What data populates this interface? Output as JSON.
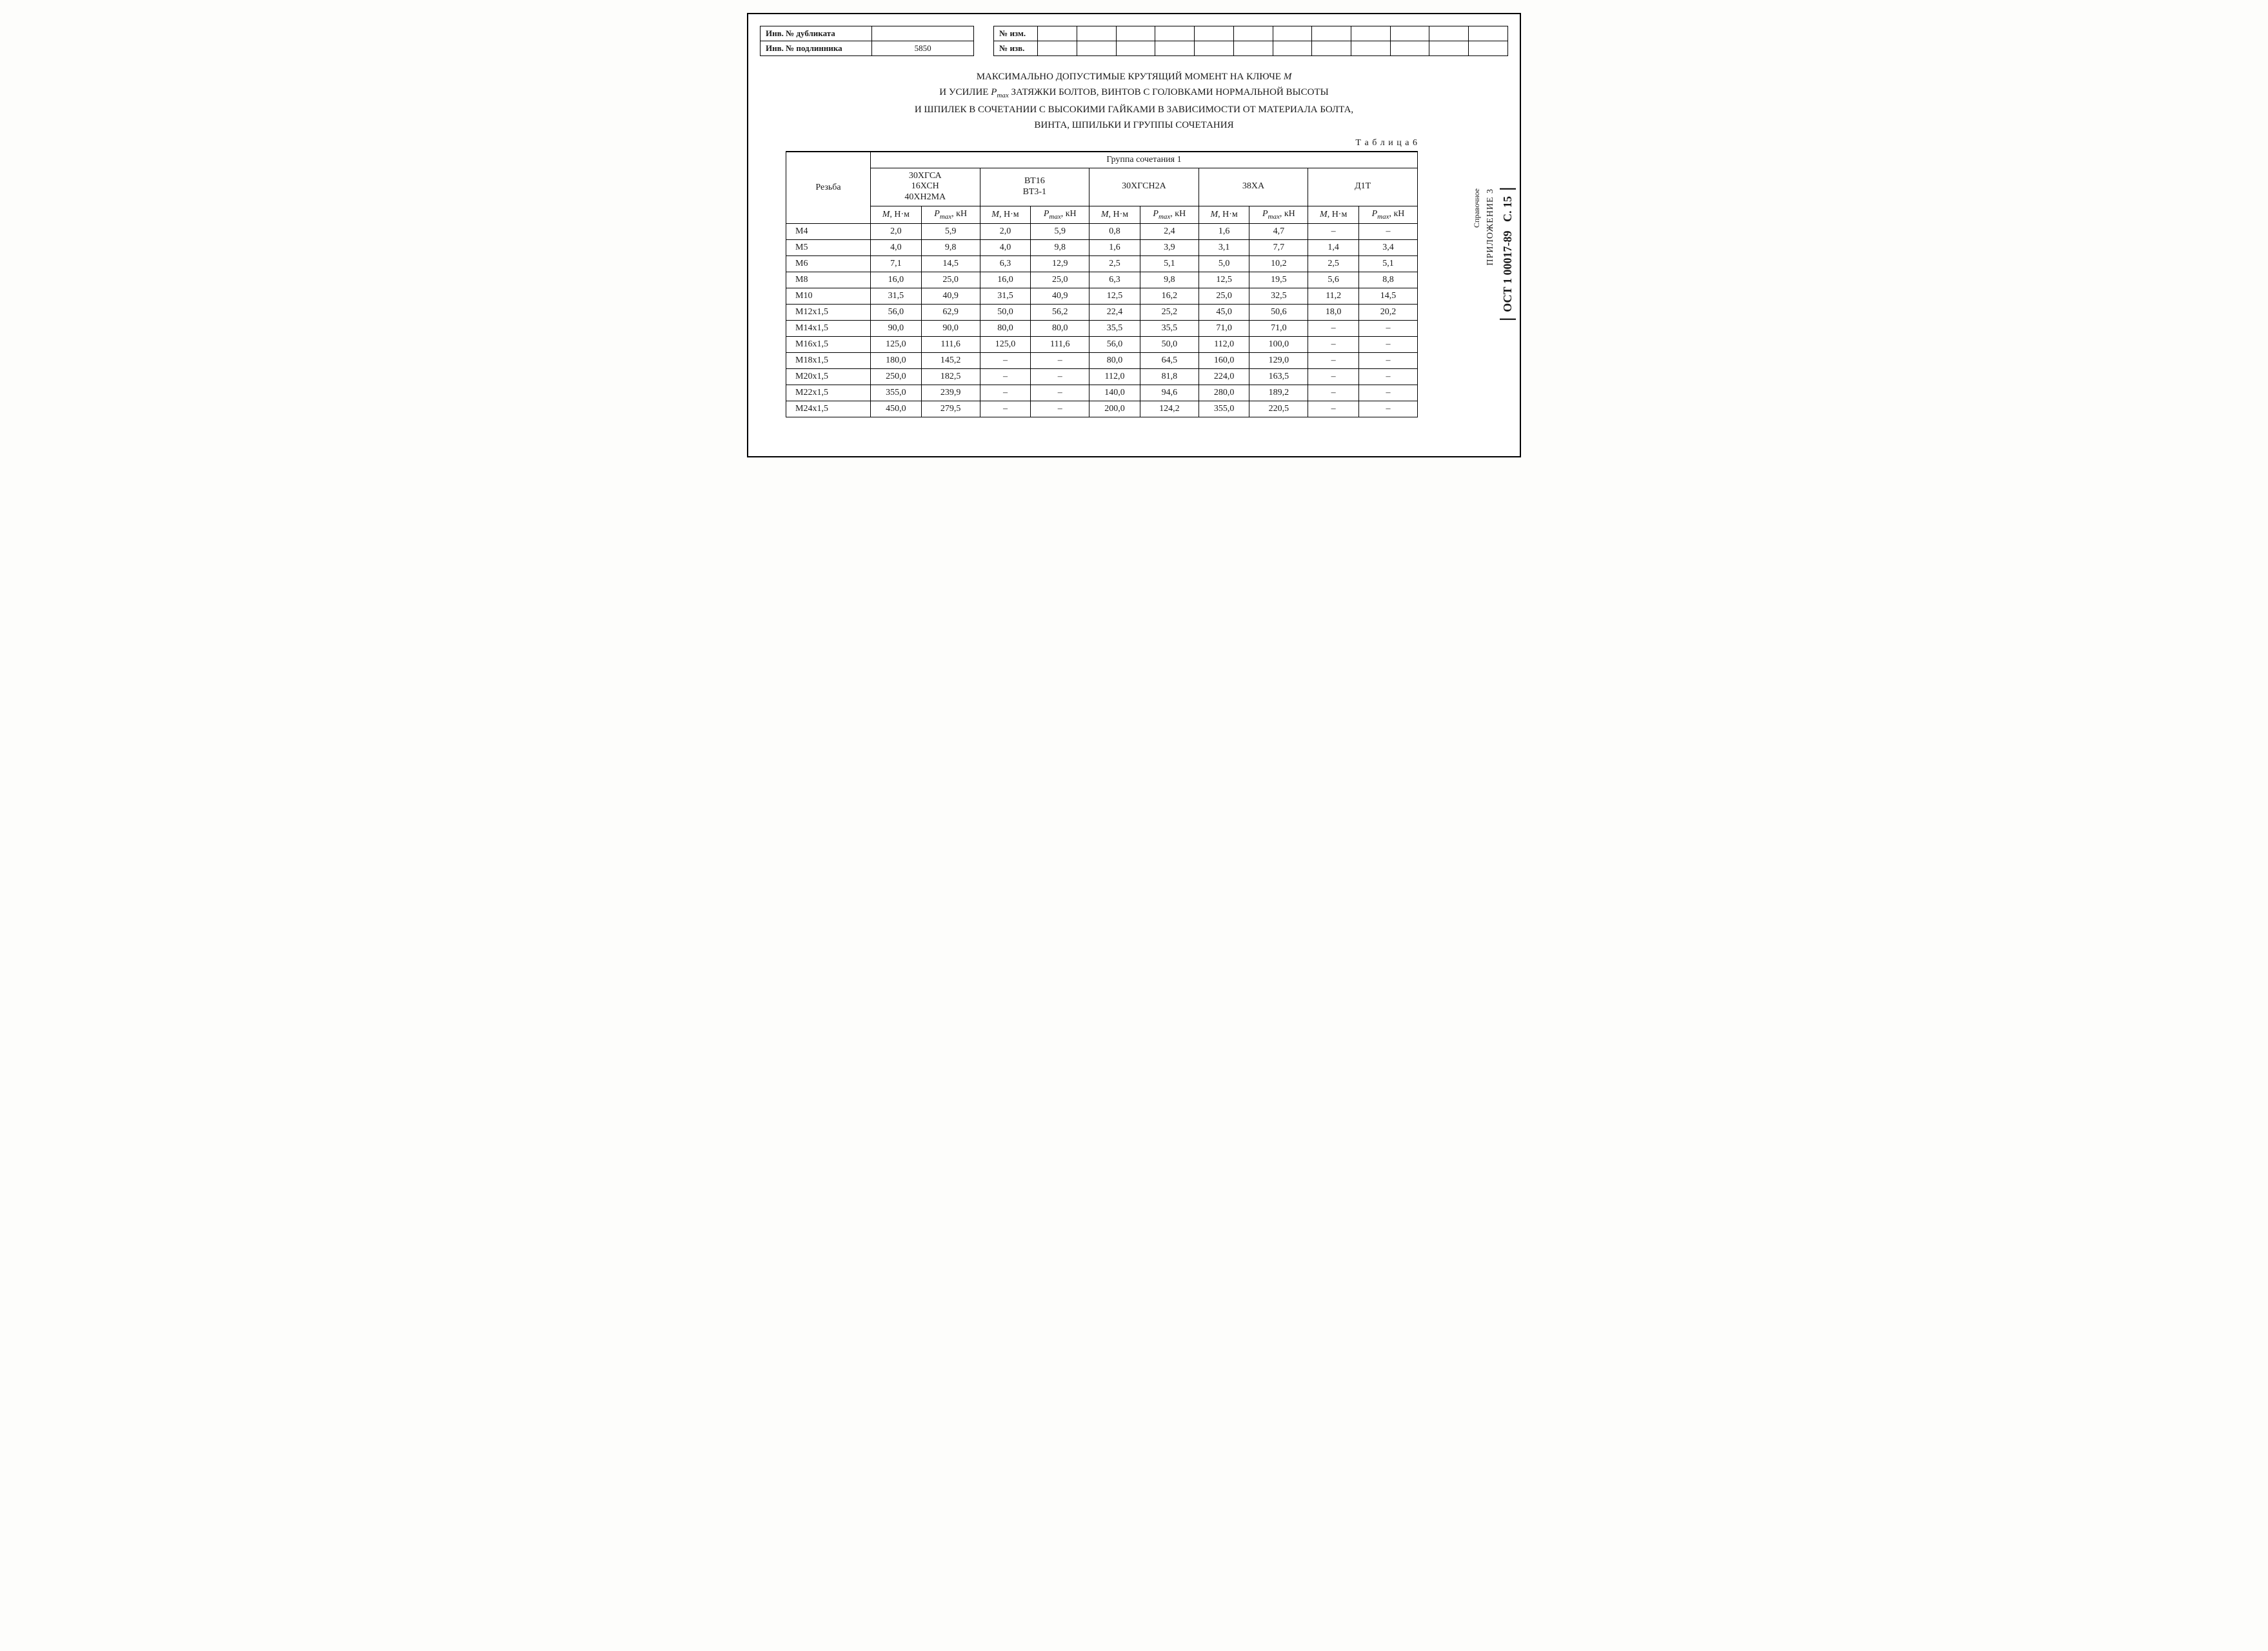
{
  "header": {
    "left_rows": [
      {
        "label": "Инв. № дубликата",
        "value": ""
      },
      {
        "label": "Инв. № подлинника",
        "value": "5850"
      }
    ],
    "right_rows": [
      {
        "label": "№ изм."
      },
      {
        "label": "№ изв."
      }
    ],
    "right_blank_cols": 12
  },
  "title": {
    "line1_a": "МАКСИМАЛЬНО ДОПУСТИМЫЕ КРУТЯЩИЙ МОМЕНТ НА КЛЮЧЕ ",
    "line1_sym": "M",
    "line2_a": "И УСИЛИЕ ",
    "line2_sym": "P",
    "line2_sub": "max",
    "line2_b": " ЗАТЯЖКИ БОЛТОВ, ВИНТОВ С ГОЛОВКАМИ НОРМАЛЬНОЙ ВЫСОТЫ",
    "line3": "И ШПИЛЕК В СОЧЕТАНИИ С ВЫСОКИМИ ГАЙКАМИ В ЗАВИСИМОСТИ ОТ МАТЕРИАЛА БОЛТА,",
    "line4": "ВИНТА, ШПИЛЬКИ И ГРУППЫ СОЧЕТАНИЯ"
  },
  "table_caption": "Т а б л и ц а 6",
  "table": {
    "thread_header": "Резьба",
    "group_header": "Группа сочетания 1",
    "materials": [
      "30ХГСА\n16ХСН\n40ХН2МА",
      "ВТ16\nВТ3-1",
      "30ХГСН2А",
      "38ХА",
      "Д1Т"
    ],
    "unit_m_sym": "M",
    "unit_m_txt": ", Н·м",
    "unit_p_sym": "P",
    "unit_p_sub": "max",
    "unit_p_txt": ", кН",
    "rows": [
      {
        "t": "М4",
        "v": [
          "2,0",
          "5,9",
          "2,0",
          "5,9",
          "0,8",
          "2,4",
          "1,6",
          "4,7",
          "–",
          "–"
        ]
      },
      {
        "t": "М5",
        "v": [
          "4,0",
          "9,8",
          "4,0",
          "9,8",
          "1,6",
          "3,9",
          "3,1",
          "7,7",
          "1,4",
          "3,4"
        ]
      },
      {
        "t": "М6",
        "v": [
          "7,1",
          "14,5",
          "6,3",
          "12,9",
          "2,5",
          "5,1",
          "5,0",
          "10,2",
          "2,5",
          "5,1"
        ]
      },
      {
        "t": "М8",
        "v": [
          "16,0",
          "25,0",
          "16,0",
          "25,0",
          "6,3",
          "9,8",
          "12,5",
          "19,5",
          "5,6",
          "8,8"
        ]
      },
      {
        "t": "М10",
        "v": [
          "31,5",
          "40,9",
          "31,5",
          "40,9",
          "12,5",
          "16,2",
          "25,0",
          "32,5",
          "11,2",
          "14,5"
        ]
      },
      {
        "t": "М12x1,5",
        "v": [
          "56,0",
          "62,9",
          "50,0",
          "56,2",
          "22,4",
          "25,2",
          "45,0",
          "50,6",
          "18,0",
          "20,2"
        ]
      },
      {
        "t": "М14x1,5",
        "v": [
          "90,0",
          "90,0",
          "80,0",
          "80,0",
          "35,5",
          "35,5",
          "71,0",
          "71,0",
          "–",
          "–"
        ]
      },
      {
        "t": "М16x1,5",
        "v": [
          "125,0",
          "111,6",
          "125,0",
          "111,6",
          "56,0",
          "50,0",
          "112,0",
          "100,0",
          "–",
          "–"
        ]
      },
      {
        "t": "М18x1,5",
        "v": [
          "180,0",
          "145,2",
          "–",
          "–",
          "80,0",
          "64,5",
          "160,0",
          "129,0",
          "–",
          "–"
        ]
      },
      {
        "t": "М20x1,5",
        "v": [
          "250,0",
          "182,5",
          "–",
          "–",
          "112,0",
          "81,8",
          "224,0",
          "163,5",
          "–",
          "–"
        ]
      },
      {
        "t": "М22x1,5",
        "v": [
          "355,0",
          "239,9",
          "–",
          "–",
          "140,0",
          "94,6",
          "280,0",
          "189,2",
          "–",
          "–"
        ]
      },
      {
        "t": "М24x1,5",
        "v": [
          "450,0",
          "279,5",
          "–",
          "–",
          "200,0",
          "124,2",
          "355,0",
          "220,5",
          "–",
          "–"
        ]
      }
    ]
  },
  "sidebar": {
    "standard": "ОСТ 1 00017-89",
    "page": "С. 15",
    "appendix": "ПРИЛОЖЕНИЕ 3",
    "ref": "Справочное"
  },
  "style": {
    "border_color": "#000000",
    "bg_color": "#ffffff",
    "font_family": "Times New Roman",
    "base_font_size_pt": 11,
    "title_font_size_pt": 12
  }
}
